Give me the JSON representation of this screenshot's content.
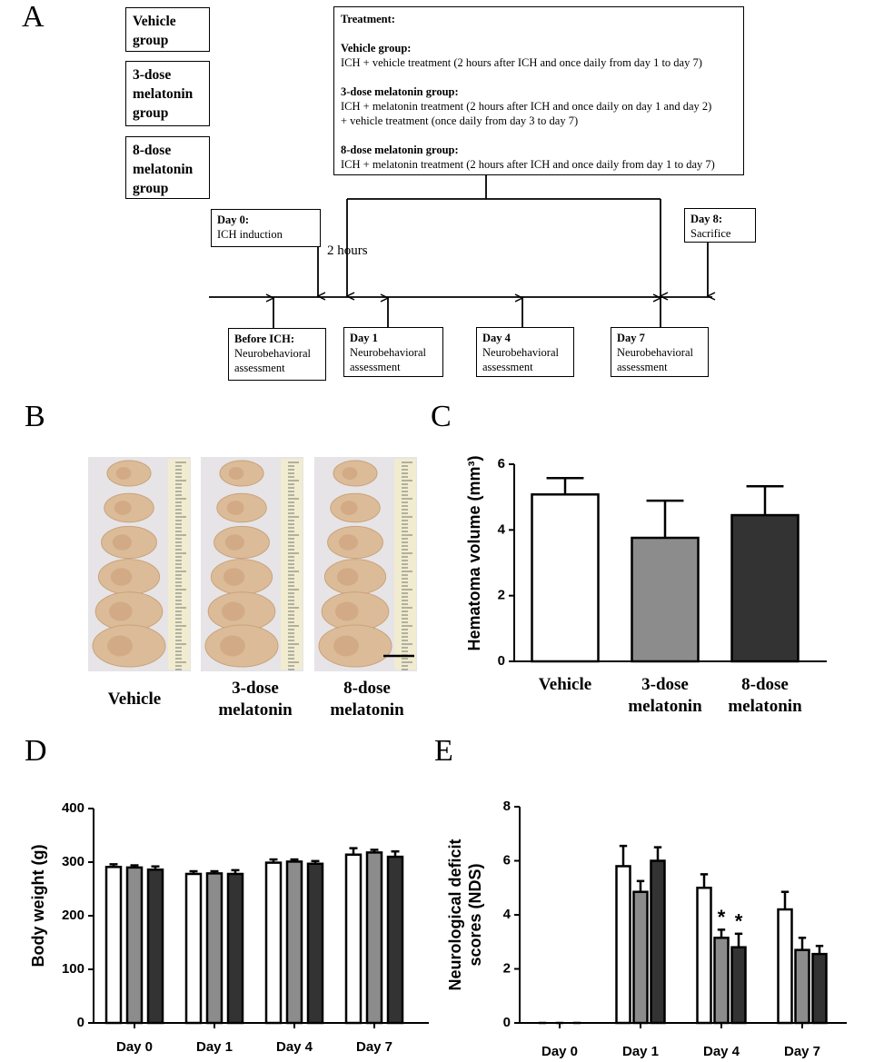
{
  "panel_labels": [
    "A",
    "B",
    "C",
    "D",
    "E"
  ],
  "diagram": {
    "groups": [
      "Vehicle group",
      "3-dose melatonin group",
      "8-dose melatonin group"
    ],
    "treatment": {
      "title": "Treatment:",
      "items": [
        {
          "heading": "Vehicle group:",
          "lines": [
            "ICH + vehicle treatment (2 hours after ICH and once daily from day 1 to day 7)"
          ]
        },
        {
          "heading": "3-dose melatonin group:",
          "lines": [
            "ICH + melatonin treatment (2 hours after ICH and once daily on day 1 and day 2)",
            "+ vehicle treatment (once daily from day 3 to day 7)"
          ]
        },
        {
          "heading": "8-dose melatonin group:",
          "lines": [
            "ICH + melatonin treatment (2 hours after ICH and once daily from day 1 to day 7)"
          ]
        }
      ]
    },
    "events": [
      {
        "heading": "Day 0:",
        "text": "ICH induction"
      },
      {
        "heading": "Day 8:",
        "text": "Sacrifice"
      }
    ],
    "interval": "2 hours",
    "assessments": [
      {
        "heading": "Before ICH:",
        "text": "Neurobehavioral assessment"
      },
      {
        "heading": "Day 1",
        "text": "Neurobehavioral assessment"
      },
      {
        "heading": "Day 4",
        "text": "Neurobehavioral assessment"
      },
      {
        "heading": "Day 7",
        "text": "Neurobehavioral assessment"
      }
    ]
  },
  "photo": {
    "labels": [
      "Vehicle",
      "3-dose melatonin",
      "8-dose melatonin"
    ]
  },
  "chart_data": [
    {
      "type": "bar",
      "y_label": "Hematoma volume (mm³)",
      "categories": [
        "Vehicle",
        "3-dose melatonin",
        "8-dose melatonin"
      ],
      "values": [
        5.08,
        3.76,
        4.45
      ],
      "errors": [
        0.5,
        1.13,
        0.88
      ],
      "colors": [
        "#ffffff",
        "#8c8c8c",
        "#333333"
      ],
      "ylim": [
        0,
        6
      ],
      "yticks": [
        0,
        2,
        4,
        6
      ]
    },
    {
      "type": "bar",
      "y_label": "Body weight (g)",
      "categories": [
        "Day 0",
        "Day 1",
        "Day 4",
        "Day 7"
      ],
      "series": [
        {
          "color": "#ffffff",
          "values": [
            291,
            278,
            299,
            314
          ],
          "errors": [
            5,
            5,
            6,
            12
          ]
        },
        {
          "color": "#8c8c8c",
          "values": [
            290,
            279,
            301,
            318
          ],
          "errors": [
            4,
            4,
            4,
            5
          ]
        },
        {
          "color": "#333333",
          "values": [
            286,
            278,
            297,
            310
          ],
          "errors": [
            6,
            7,
            5,
            10
          ]
        }
      ],
      "ylim": [
        0,
        400
      ],
      "yticks": [
        0,
        100,
        200,
        300,
        400
      ]
    },
    {
      "type": "bar",
      "y_label": "Neurological deficit scores (NDS)",
      "categories": [
        "Day 0",
        "Day 1",
        "Day 4",
        "Day 7"
      ],
      "series": [
        {
          "color": "#ffffff",
          "values": [
            0,
            5.8,
            5.0,
            4.2
          ],
          "errors": [
            0,
            0.75,
            0.5,
            0.65
          ]
        },
        {
          "color": "#8c8c8c",
          "values": [
            0,
            4.85,
            3.15,
            2.7
          ],
          "errors": [
            0,
            0.4,
            0.3,
            0.45
          ]
        },
        {
          "color": "#333333",
          "values": [
            0,
            6.0,
            2.8,
            2.55
          ],
          "errors": [
            0,
            0.5,
            0.5,
            0.3
          ]
        }
      ],
      "annotations": [
        "*",
        "*"
      ],
      "ylim": [
        0,
        8
      ],
      "yticks": [
        0,
        2,
        4,
        6,
        8
      ]
    }
  ]
}
